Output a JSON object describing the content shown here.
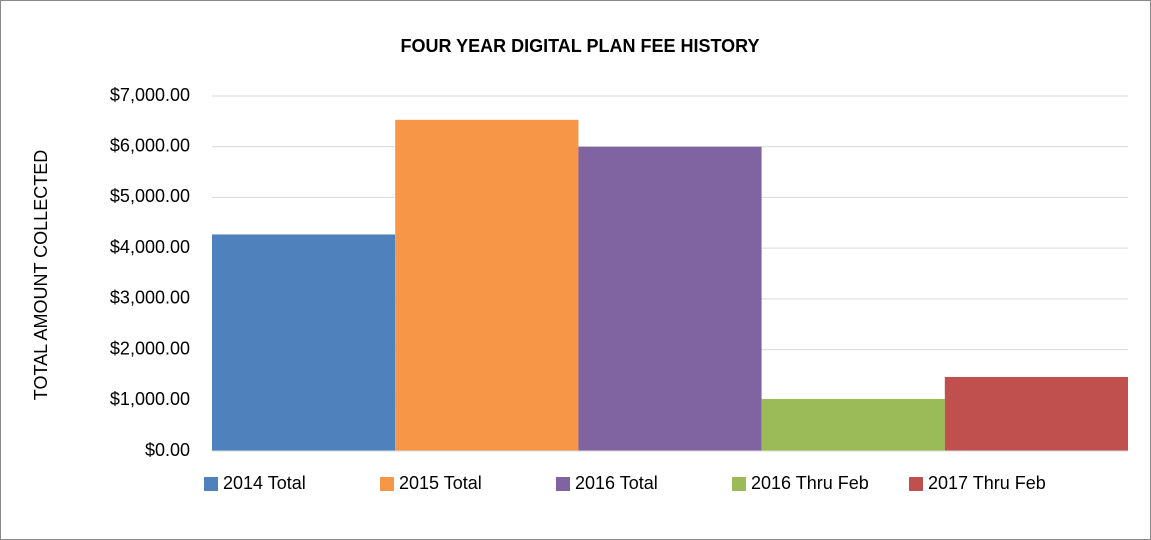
{
  "chart_data": {
    "type": "bar",
    "title": "FOUR YEAR DIGITAL PLAN FEE HISTORY",
    "y_label": "TOTAL AMOUNT COLLECTED",
    "categories": [
      null
    ],
    "series": [
      {
        "name": "2014 Total",
        "color": "#4f81bd",
        "values": [
          4270
        ]
      },
      {
        "name": "2015 Total",
        "color": "#f79646",
        "values": [
          6530
        ]
      },
      {
        "name": "2016 Total",
        "color": "#8064a2",
        "values": [
          6000
        ]
      },
      {
        "name": "2016 Thru Feb",
        "color": "#9bbb59",
        "values": [
          1025
        ]
      },
      {
        "name": "2017 Thru Feb",
        "color": "#c0504d",
        "values": [
          1460
        ]
      }
    ],
    "ylim": [
      0,
      7000
    ],
    "yticks": [
      {
        "value": 0,
        "label": "$0.00"
      },
      {
        "value": 1000,
        "label": "$1,000.00"
      },
      {
        "value": 2000,
        "label": "$2,000.00"
      },
      {
        "value": 3000,
        "label": "$3,000.00"
      },
      {
        "value": 4000,
        "label": "$4,000.00"
      },
      {
        "value": 5000,
        "label": "$5,000.00"
      },
      {
        "value": 6000,
        "label": "$6,000.00"
      },
      {
        "value": 7000,
        "label": "$7,000.00"
      }
    ],
    "grid": true,
    "legend": "bottom"
  }
}
